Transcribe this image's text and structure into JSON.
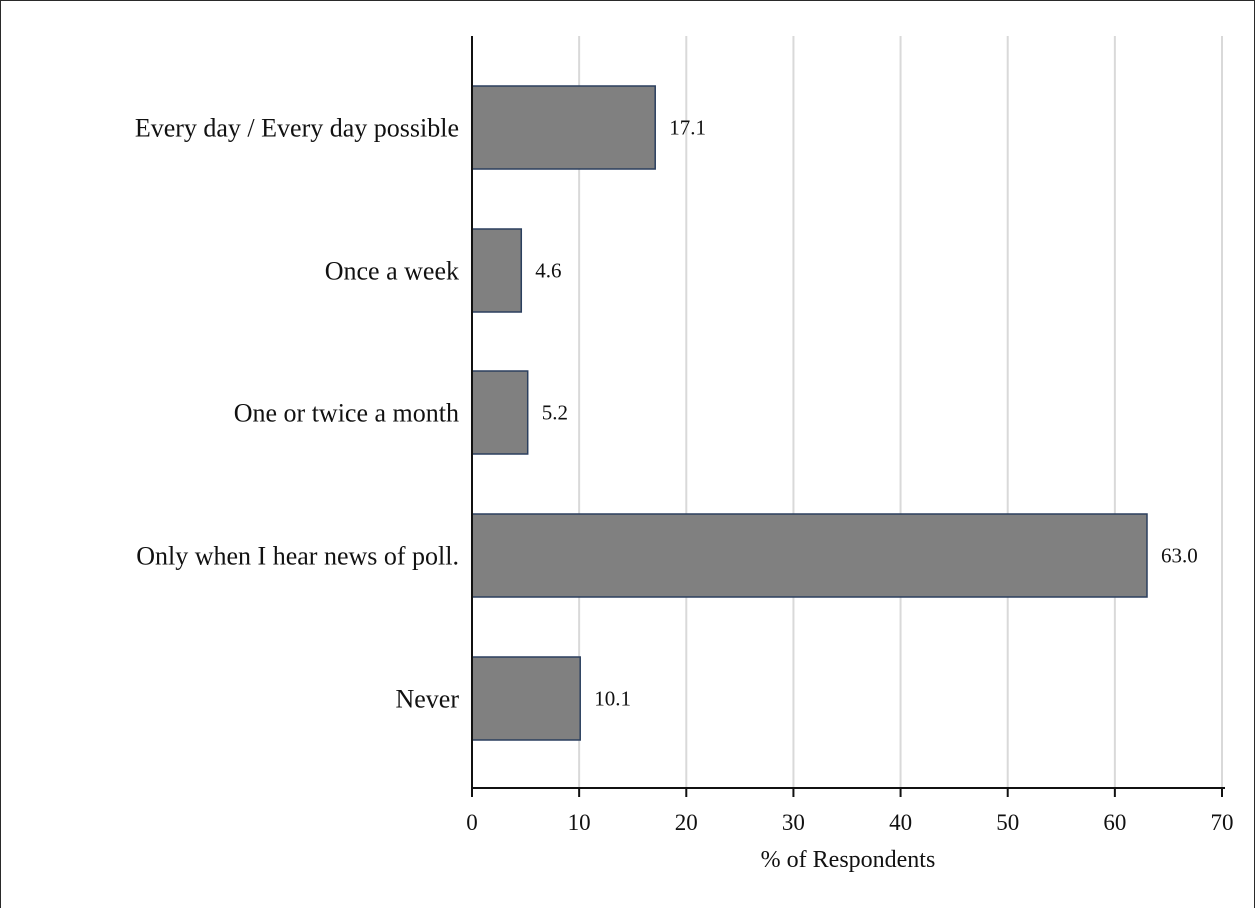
{
  "chart_data": {
    "type": "bar",
    "orientation": "horizontal",
    "categories": [
      "Every day / Every day possible",
      "Once a week",
      "One or twice a month",
      "Only when I hear news of poll.",
      "Never"
    ],
    "values": [
      17.1,
      4.6,
      5.2,
      63.0,
      10.1
    ],
    "value_labels": [
      "17.1",
      "4.6",
      "5.2",
      "63.0",
      "10.1"
    ],
    "xlabel": "% of Respondents",
    "xlim": [
      0,
      70
    ],
    "xticks": [
      0,
      10,
      20,
      30,
      40,
      50,
      60,
      70
    ],
    "grid": "vertical",
    "colors": {
      "bar_fill": "#808080",
      "bar_stroke": "#2b3f5e",
      "grid": "#d9d9d9",
      "axis": "#111111"
    }
  }
}
